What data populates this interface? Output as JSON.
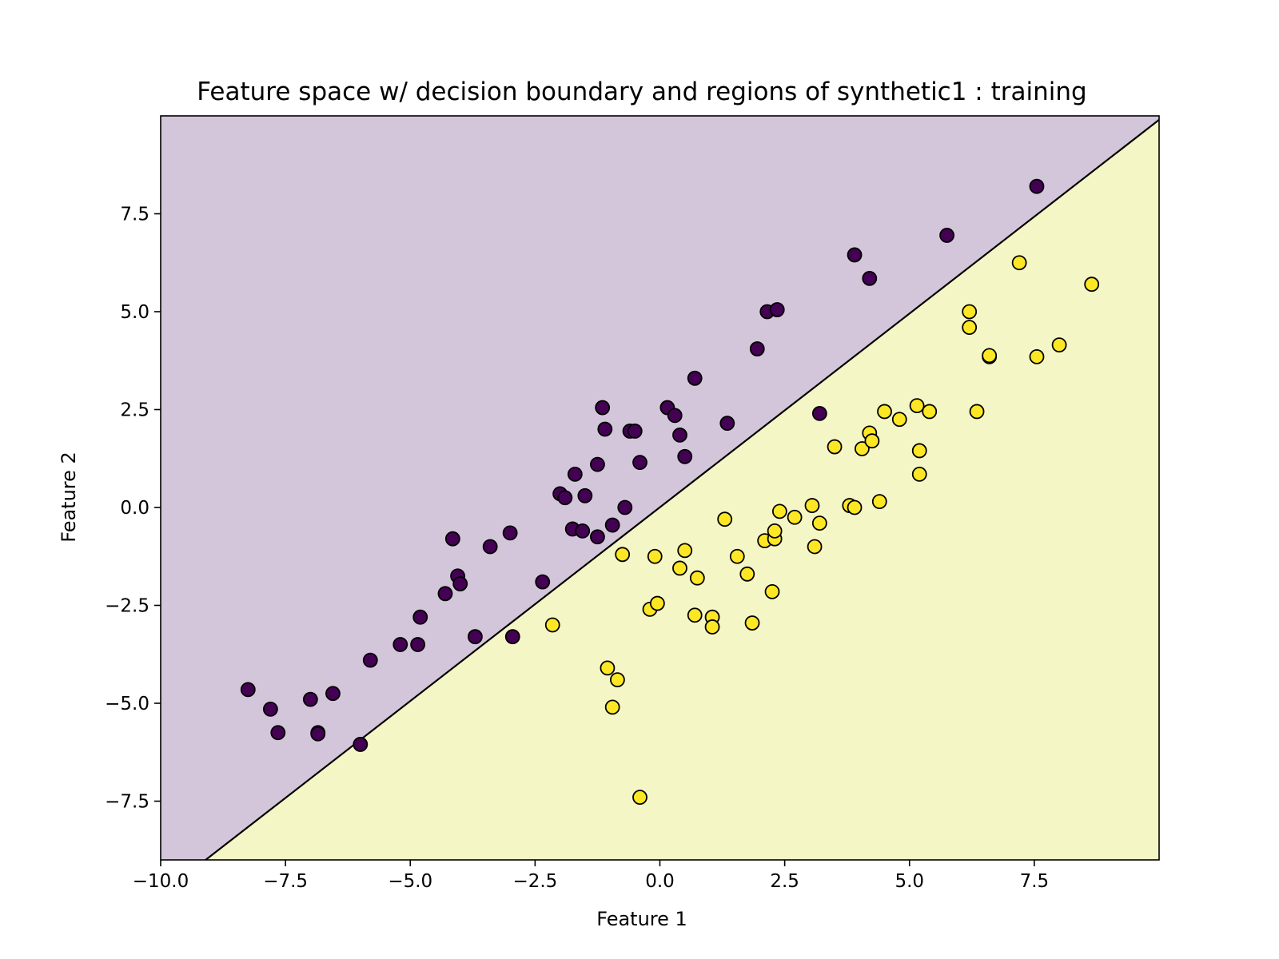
{
  "chart_data": {
    "type": "scatter",
    "title": "Feature space w/ decision boundary and regions of synthetic1 : training",
    "xlabel": "Feature 1",
    "ylabel": "Feature 2",
    "xlim": [
      -10.0,
      10.0
    ],
    "ylim": [
      -9.0,
      10.0
    ],
    "x_ticks": [
      -10.0,
      -7.5,
      -5.0,
      -2.5,
      0.0,
      2.5,
      5.0,
      7.5
    ],
    "y_ticks": [
      -7.5,
      -5.0,
      -2.5,
      0.0,
      2.5,
      5.0,
      7.5
    ],
    "x_tick_labels": [
      "−10.0",
      "−7.5",
      "−5.0",
      "−2.5",
      "0.0",
      "2.5",
      "5.0",
      "7.5"
    ],
    "y_tick_labels": [
      "−7.5",
      "−5.0",
      "−2.5",
      "0.0",
      "2.5",
      "5.0",
      "7.5"
    ],
    "grid": false,
    "decision_boundary": {
      "points": [
        [
          -9.1,
          -9.0
        ],
        [
          10.0,
          9.9
        ]
      ],
      "color": "#000000"
    },
    "regions": [
      {
        "class": 0,
        "color": "#d3c6da"
      },
      {
        "class": 1,
        "color": "#f5f6c5"
      }
    ],
    "series": [
      {
        "class": 0,
        "color": "#440154",
        "points": [
          [
            -8.25,
            -4.65
          ],
          [
            -7.8,
            -5.15
          ],
          [
            -7.65,
            -5.75
          ],
          [
            -7.0,
            -4.9
          ],
          [
            -6.85,
            -5.75
          ],
          [
            -6.85,
            -5.78
          ],
          [
            -6.55,
            -4.75
          ],
          [
            -6.0,
            -6.05
          ],
          [
            -5.8,
            -3.9
          ],
          [
            -5.2,
            -3.5
          ],
          [
            -4.85,
            -3.5
          ],
          [
            -4.8,
            -2.8
          ],
          [
            -4.3,
            -2.2
          ],
          [
            -4.15,
            -0.8
          ],
          [
            -4.05,
            -1.75
          ],
          [
            -4.0,
            -1.95
          ],
          [
            -3.7,
            -3.3
          ],
          [
            -3.4,
            -1.0
          ],
          [
            -3.0,
            -0.65
          ],
          [
            -2.95,
            -3.3
          ],
          [
            -2.35,
            -1.9
          ],
          [
            -2.0,
            0.35
          ],
          [
            -1.9,
            0.25
          ],
          [
            -1.75,
            -0.55
          ],
          [
            -1.7,
            0.85
          ],
          [
            -1.55,
            -0.6
          ],
          [
            -1.5,
            0.3
          ],
          [
            -1.25,
            -0.75
          ],
          [
            -1.25,
            1.1
          ],
          [
            -1.15,
            2.55
          ],
          [
            -1.1,
            2.0
          ],
          [
            -0.95,
            -0.45
          ],
          [
            -0.7,
            0.0
          ],
          [
            -0.6,
            1.95
          ],
          [
            -0.5,
            1.95
          ],
          [
            -0.4,
            1.15
          ],
          [
            0.15,
            2.55
          ],
          [
            0.3,
            2.35
          ],
          [
            0.4,
            1.85
          ],
          [
            0.5,
            1.3
          ],
          [
            0.7,
            3.3
          ],
          [
            1.35,
            2.15
          ],
          [
            1.95,
            4.05
          ],
          [
            2.15,
            5.0
          ],
          [
            2.35,
            5.05
          ],
          [
            3.2,
            2.4
          ],
          [
            3.9,
            6.45
          ],
          [
            4.2,
            5.85
          ],
          [
            5.75,
            6.95
          ],
          [
            7.55,
            8.2
          ]
        ]
      },
      {
        "class": 1,
        "color": "#fde725",
        "points": [
          [
            -2.15,
            -3.0
          ],
          [
            -1.05,
            -4.1
          ],
          [
            -0.95,
            -5.1
          ],
          [
            -0.85,
            -4.4
          ],
          [
            -0.75,
            -1.2
          ],
          [
            -0.4,
            -7.4
          ],
          [
            -0.2,
            -2.6
          ],
          [
            -0.1,
            -1.25
          ],
          [
            -0.05,
            -2.45
          ],
          [
            0.4,
            -1.55
          ],
          [
            0.5,
            -1.1
          ],
          [
            0.7,
            -2.75
          ],
          [
            0.75,
            -1.8
          ],
          [
            1.05,
            -2.8
          ],
          [
            1.05,
            -3.05
          ],
          [
            1.3,
            -0.3
          ],
          [
            1.55,
            -1.25
          ],
          [
            1.75,
            -1.7
          ],
          [
            1.85,
            -2.95
          ],
          [
            2.1,
            -0.85
          ],
          [
            2.25,
            -2.15
          ],
          [
            2.3,
            -0.8
          ],
          [
            2.3,
            -0.6
          ],
          [
            2.4,
            -0.1
          ],
          [
            2.7,
            -0.25
          ],
          [
            3.05,
            0.05
          ],
          [
            3.1,
            -1.0
          ],
          [
            3.2,
            -0.4
          ],
          [
            3.5,
            1.55
          ],
          [
            3.8,
            0.05
          ],
          [
            3.9,
            0.0
          ],
          [
            4.05,
            1.5
          ],
          [
            4.2,
            1.9
          ],
          [
            4.25,
            1.7
          ],
          [
            4.4,
            0.15
          ],
          [
            4.5,
            2.45
          ],
          [
            4.8,
            2.25
          ],
          [
            5.15,
            2.6
          ],
          [
            5.2,
            1.45
          ],
          [
            5.2,
            0.85
          ],
          [
            5.4,
            2.45
          ],
          [
            6.2,
            5.0
          ],
          [
            6.2,
            4.6
          ],
          [
            6.35,
            2.45
          ],
          [
            6.6,
            3.85
          ],
          [
            6.6,
            3.88
          ],
          [
            7.2,
            6.25
          ],
          [
            7.55,
            3.85
          ],
          [
            8.0,
            4.15
          ],
          [
            8.65,
            5.7
          ]
        ]
      }
    ]
  }
}
